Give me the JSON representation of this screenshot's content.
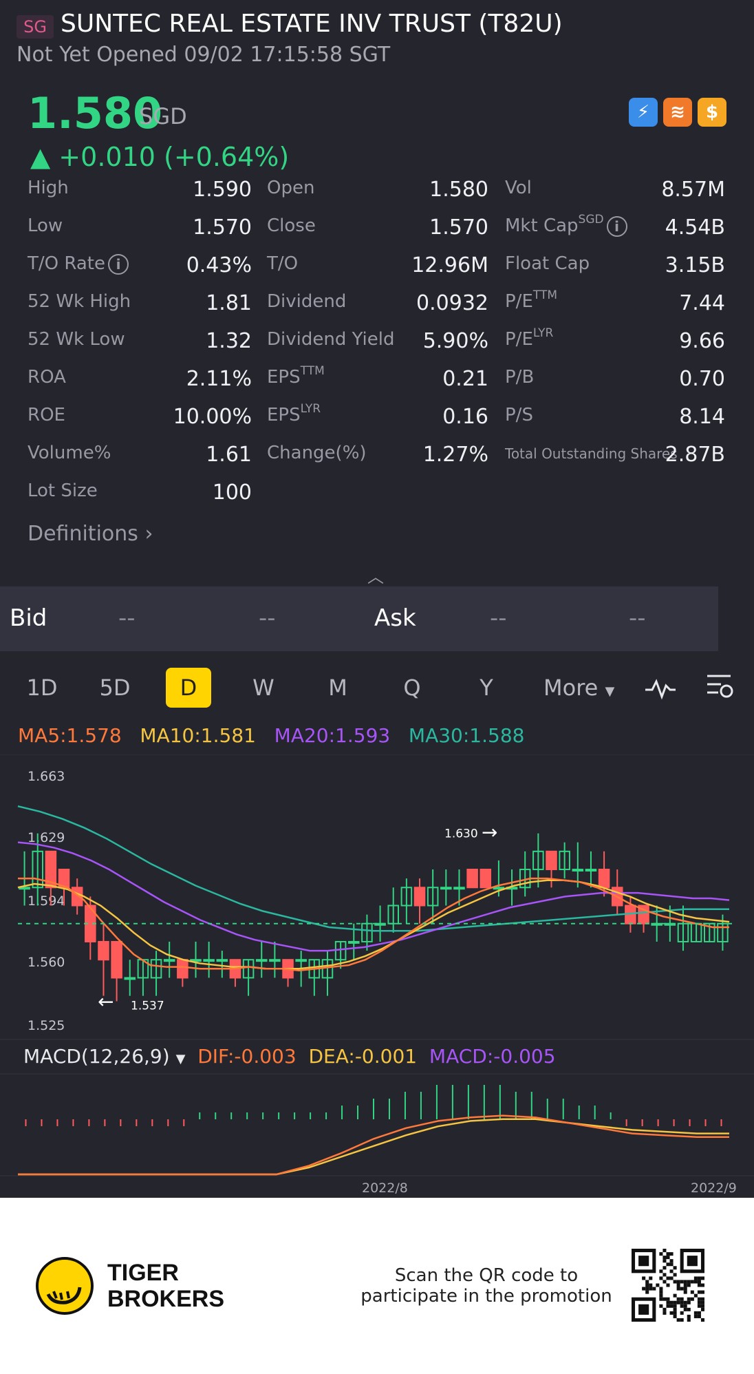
{
  "header": {
    "market_badge": "SG",
    "title": "SUNTEC REAL ESTATE INV TRUST (T82U)",
    "status_line": "Not Yet Opened 09/02 17:15:58 SGT"
  },
  "quote": {
    "price": "1.580",
    "currency": "SGD",
    "change": "▲ +0.010 (+0.64%)",
    "accent_up": "#32d583"
  },
  "badges": {
    "b1": "⚡",
    "b2": "≋",
    "b3": "$"
  },
  "stats": [
    [
      {
        "label": "High",
        "value": "1.590"
      },
      {
        "label": "Open",
        "value": "1.580"
      },
      {
        "label": "Vol",
        "value": "8.57M"
      }
    ],
    [
      {
        "label": "Low",
        "value": "1.570"
      },
      {
        "label": "Close",
        "value": "1.570"
      },
      {
        "label": "Mkt Cap",
        "sup": "SGD",
        "value": "4.54B",
        "info": true
      }
    ],
    [
      {
        "label": "T/O Rate",
        "value": "0.43%",
        "info": true
      },
      {
        "label": "T/O",
        "value": "12.96M"
      },
      {
        "label": "Float Cap",
        "value": "3.15B"
      }
    ],
    [
      {
        "label": "52 Wk High",
        "value": "1.81"
      },
      {
        "label": "Dividend",
        "value": "0.0932"
      },
      {
        "label": "P/E",
        "sup": "TTM",
        "value": "7.44"
      }
    ],
    [
      {
        "label": "52 Wk Low",
        "value": "1.32"
      },
      {
        "label": "Dividend Yield",
        "value": "5.90%"
      },
      {
        "label": "P/E",
        "sup": "LYR",
        "value": "9.66"
      }
    ],
    [
      {
        "label": "ROA",
        "value": "2.11%"
      },
      {
        "label": "EPS",
        "sup": "TTM",
        "value": "0.21"
      },
      {
        "label": "P/B",
        "value": "0.70"
      }
    ],
    [
      {
        "label": "ROE",
        "value": "10.00%"
      },
      {
        "label": "EPS",
        "sup": "LYR",
        "value": "0.16"
      },
      {
        "label": "P/S",
        "value": "8.14"
      }
    ],
    [
      {
        "label": "Volume%",
        "value": "1.61"
      },
      {
        "label": "Change(%)",
        "value": "1.27%"
      },
      {
        "label": "Total Outstanding Shares",
        "value": "2.87B",
        "small": true
      }
    ],
    [
      {
        "label": "Lot Size",
        "value": "100"
      }
    ]
  ],
  "definitions_label": "Definitions",
  "bidask": {
    "bid_label": "Bid",
    "bid_v1": "--",
    "bid_v2": "--",
    "ask_label": "Ask",
    "ask_v1": "--",
    "ask_v2": "--"
  },
  "tabs": [
    "1D",
    "5D",
    "D",
    "W",
    "M",
    "Q",
    "Y"
  ],
  "active_tab": "D",
  "more_label": "More",
  "ma": {
    "ma5": "MA5:1.578",
    "ma10": "MA10:1.581",
    "ma20": "MA20:1.593",
    "ma30": "MA30:1.588",
    "colors": {
      "ma5": "#ff7a3a",
      "ma10": "#f5c542",
      "ma20": "#a855f7",
      "ma30": "#2bb8a0"
    }
  },
  "macd": {
    "label": "MACD(12,26,9)",
    "dif": "DIF:-0.003",
    "dea": "DEA:-0.001",
    "macd": "MACD:-0.005"
  },
  "chart_data": {
    "type": "candlestick",
    "y_ticks": [
      "1.663",
      "1.629",
      "1.594",
      "1.560",
      "1.525"
    ],
    "ylim": [
      1.525,
      1.663
    ],
    "current_price": 1.58,
    "annotations": [
      {
        "text": "1.630",
        "value": 1.63,
        "arrow": "right"
      },
      {
        "text": "1.537",
        "value": 1.537,
        "arrow": "left"
      }
    ],
    "x_labels": [
      "2022/8",
      "2022/9"
    ],
    "candles": [
      [
        1.6,
        1.6,
        1.62,
        1.59
      ],
      [
        1.6,
        1.62,
        1.63,
        1.59
      ],
      [
        1.62,
        1.6,
        1.62,
        1.59
      ],
      [
        1.61,
        1.6,
        1.61,
        1.59
      ],
      [
        1.6,
        1.59,
        1.605,
        1.585
      ],
      [
        1.59,
        1.57,
        1.595,
        1.56
      ],
      [
        1.57,
        1.56,
        1.58,
        1.54
      ],
      [
        1.57,
        1.55,
        1.57,
        1.537
      ],
      [
        1.55,
        1.55,
        1.56,
        1.54
      ],
      [
        1.55,
        1.56,
        1.56,
        1.54
      ],
      [
        1.55,
        1.56,
        1.565,
        1.54
      ],
      [
        1.56,
        1.56,
        1.57,
        1.55
      ],
      [
        1.56,
        1.55,
        1.56,
        1.545
      ],
      [
        1.56,
        1.56,
        1.57,
        1.55
      ],
      [
        1.56,
        1.56,
        1.57,
        1.55
      ],
      [
        1.56,
        1.56,
        1.565,
        1.55
      ],
      [
        1.56,
        1.55,
        1.56,
        1.545
      ],
      [
        1.55,
        1.56,
        1.56,
        1.54
      ],
      [
        1.56,
        1.56,
        1.57,
        1.55
      ],
      [
        1.56,
        1.56,
        1.57,
        1.55
      ],
      [
        1.56,
        1.55,
        1.56,
        1.545
      ],
      [
        1.56,
        1.56,
        1.565,
        1.545
      ],
      [
        1.55,
        1.56,
        1.56,
        1.54
      ],
      [
        1.55,
        1.56,
        1.565,
        1.54
      ],
      [
        1.56,
        1.57,
        1.57,
        1.555
      ],
      [
        1.57,
        1.57,
        1.58,
        1.56
      ],
      [
        1.57,
        1.58,
        1.585,
        1.565
      ],
      [
        1.58,
        1.58,
        1.59,
        1.57
      ],
      [
        1.58,
        1.59,
        1.6,
        1.575
      ],
      [
        1.59,
        1.6,
        1.605,
        1.58
      ],
      [
        1.6,
        1.59,
        1.605,
        1.58
      ],
      [
        1.59,
        1.6,
        1.61,
        1.58
      ],
      [
        1.6,
        1.6,
        1.61,
        1.59
      ],
      [
        1.6,
        1.6,
        1.61,
        1.59
      ],
      [
        1.61,
        1.6,
        1.61,
        1.6
      ],
      [
        1.61,
        1.6,
        1.61,
        1.6
      ],
      [
        1.6,
        1.6,
        1.615,
        1.595
      ],
      [
        1.6,
        1.6,
        1.61,
        1.59
      ],
      [
        1.6,
        1.61,
        1.62,
        1.595
      ],
      [
        1.61,
        1.62,
        1.63,
        1.6
      ],
      [
        1.62,
        1.61,
        1.62,
        1.6
      ],
      [
        1.61,
        1.62,
        1.625,
        1.605
      ],
      [
        1.61,
        1.61,
        1.625,
        1.6
      ],
      [
        1.61,
        1.61,
        1.62,
        1.6
      ],
      [
        1.61,
        1.6,
        1.62,
        1.595
      ],
      [
        1.6,
        1.59,
        1.61,
        1.585
      ],
      [
        1.59,
        1.58,
        1.595,
        1.575
      ],
      [
        1.59,
        1.58,
        1.59,
        1.575
      ],
      [
        1.58,
        1.58,
        1.59,
        1.57
      ],
      [
        1.58,
        1.58,
        1.59,
        1.57
      ],
      [
        1.57,
        1.58,
        1.59,
        1.565
      ],
      [
        1.57,
        1.58,
        1.58,
        1.57
      ],
      [
        1.57,
        1.58,
        1.58,
        1.57
      ],
      [
        1.57,
        1.58,
        1.585,
        1.565
      ]
    ],
    "ma5": [
      1.605,
      1.605,
      1.603,
      1.6,
      1.593,
      1.582,
      1.572,
      1.563,
      1.557,
      1.556,
      1.556,
      1.555,
      1.555,
      1.555,
      1.556,
      1.555,
      1.555,
      1.554,
      1.555,
      1.556,
      1.557,
      1.56,
      1.565,
      1.571,
      1.577,
      1.583,
      1.589,
      1.594,
      1.598,
      1.601,
      1.603,
      1.605,
      1.605,
      1.604,
      1.603,
      1.6,
      1.596,
      1.591,
      1.587,
      1.584,
      1.582,
      1.58,
      1.578,
      1.578
    ],
    "ma10": [
      1.6,
      1.602,
      1.601,
      1.599,
      1.595,
      1.59,
      1.583,
      1.575,
      1.568,
      1.563,
      1.56,
      1.558,
      1.557,
      1.556,
      1.556,
      1.555,
      1.555,
      1.555,
      1.556,
      1.557,
      1.559,
      1.562,
      1.566,
      1.571,
      1.576,
      1.581,
      1.586,
      1.59,
      1.594,
      1.598,
      1.601,
      1.603,
      1.604,
      1.604,
      1.603,
      1.601,
      1.598,
      1.595,
      1.591,
      1.588,
      1.585,
      1.583,
      1.582,
      1.581
    ],
    "ma20": [
      1.625,
      1.624,
      1.622,
      1.619,
      1.615,
      1.61,
      1.604,
      1.598,
      1.592,
      1.587,
      1.582,
      1.578,
      1.574,
      1.571,
      1.569,
      1.567,
      1.565,
      1.565,
      1.566,
      1.567,
      1.569,
      1.571,
      1.574,
      1.577,
      1.58,
      1.583,
      1.586,
      1.589,
      1.591,
      1.593,
      1.595,
      1.596,
      1.597,
      1.597,
      1.597,
      1.596,
      1.595,
      1.594,
      1.594,
      1.593
    ],
    "ma30": [
      1.645,
      1.642,
      1.638,
      1.633,
      1.627,
      1.62,
      1.613,
      1.607,
      1.601,
      1.596,
      1.591,
      1.587,
      1.584,
      1.581,
      1.578,
      1.577,
      1.576,
      1.576,
      1.576,
      1.577,
      1.578,
      1.579,
      1.58,
      1.581,
      1.582,
      1.583,
      1.584,
      1.585,
      1.586,
      1.587,
      1.588,
      1.588,
      1.588
    ],
    "macd_hist": [
      -1,
      -1,
      -1,
      -1,
      -1,
      -1,
      -1,
      -1,
      -1,
      -1,
      -1,
      1,
      1,
      1,
      1,
      1,
      1,
      1,
      1,
      1,
      2,
      2,
      3,
      3,
      4,
      4,
      5,
      5,
      5,
      5,
      5,
      4,
      4,
      3,
      3,
      2,
      2,
      1,
      -1,
      -1,
      -1,
      -1,
      -1,
      -1,
      -1
    ],
    "dif": [
      -0.03,
      -0.032,
      -0.034,
      -0.036,
      -0.036,
      -0.035,
      -0.033,
      -0.03,
      -0.025,
      -0.019,
      -0.012,
      -0.004,
      0.002,
      0.006,
      0.008,
      0.009,
      0.008,
      0.005,
      0.002,
      -0.001,
      -0.002,
      -0.003,
      -0.003
    ],
    "dea": [
      -0.032,
      -0.033,
      -0.034,
      -0.035,
      -0.035,
      -0.034,
      -0.032,
      -0.029,
      -0.025,
      -0.02,
      -0.014,
      -0.008,
      -0.002,
      0.003,
      0.006,
      0.007,
      0.007,
      0.005,
      0.003,
      0.001,
      0.0,
      -0.001,
      -0.001
    ]
  },
  "footer": {
    "brand_line1": "TIGER",
    "brand_line2": "BROKERS",
    "scan_line1": "Scan the QR code to",
    "scan_line2": "participate in the promotion"
  }
}
